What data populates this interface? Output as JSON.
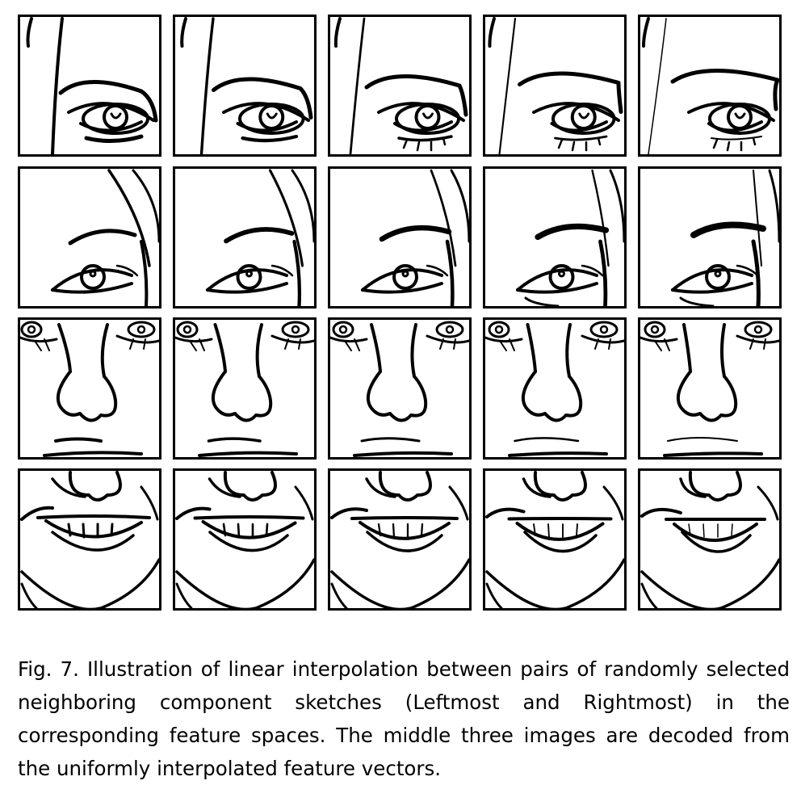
{
  "figure": {
    "rows": [
      {
        "component": "eye-left",
        "columns": [
          "Leftmost",
          "interpolated",
          "interpolated",
          "interpolated",
          "Rightmost"
        ]
      },
      {
        "component": "eye-right",
        "columns": [
          "Leftmost",
          "interpolated",
          "interpolated",
          "interpolated",
          "Rightmost"
        ]
      },
      {
        "component": "nose",
        "columns": [
          "Leftmost",
          "interpolated",
          "interpolated",
          "interpolated",
          "Rightmost"
        ]
      },
      {
        "component": "mouth",
        "columns": [
          "Leftmost",
          "interpolated",
          "interpolated",
          "interpolated",
          "Rightmost"
        ]
      }
    ]
  },
  "caption": {
    "text": "Fig. 7.  Illustration of linear interpolation between pairs of randomly selected neighboring component sketches (Leftmost and Rightmost) in the corresponding feature spaces. The middle three images are decoded from the uniformly interpolated feature vectors."
  }
}
